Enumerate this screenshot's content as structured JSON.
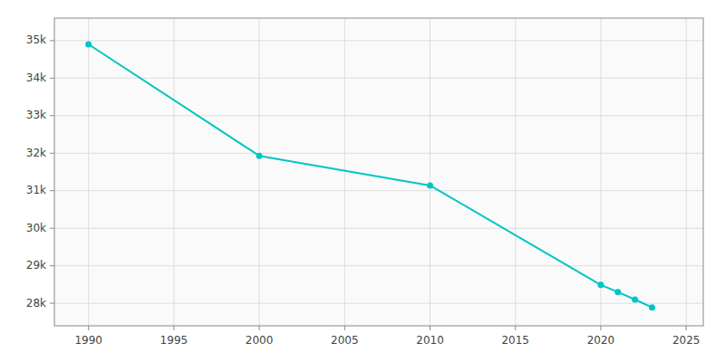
{
  "chart_data": {
    "type": "line",
    "x": [
      1990,
      2000,
      2010,
      2020,
      2021,
      2022,
      2023
    ],
    "values": [
      34900,
      31930,
      31140,
      28490,
      28300,
      28100,
      27890
    ],
    "color": "#00C5C5",
    "marker": "circle",
    "xlim": [
      1988,
      2026
    ],
    "ylim": [
      27400,
      35600
    ],
    "xticks": [
      1990,
      1995,
      2000,
      2005,
      2010,
      2015,
      2020,
      2025
    ],
    "yticks": [
      {
        "value": 28000,
        "label": "28k"
      },
      {
        "value": 29000,
        "label": "29k"
      },
      {
        "value": 30000,
        "label": "30k"
      },
      {
        "value": 31000,
        "label": "31k"
      },
      {
        "value": 32000,
        "label": "32k"
      },
      {
        "value": 33000,
        "label": "33k"
      },
      {
        "value": 34000,
        "label": "34k"
      },
      {
        "value": 35000,
        "label": "35k"
      }
    ],
    "grid": true
  }
}
